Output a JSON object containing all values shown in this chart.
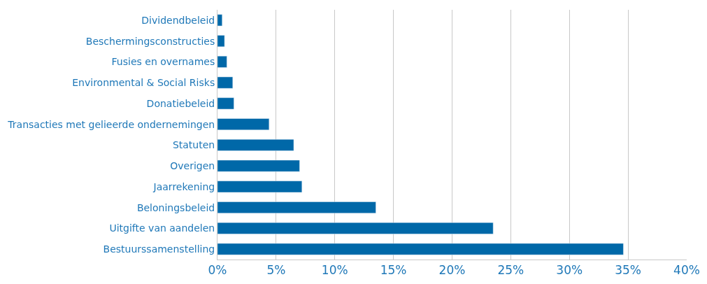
{
  "chart_data": {
    "type": "bar",
    "orientation": "horizontal",
    "categories": [
      "Dividendbeleid",
      "Beschermingsconstructies",
      "Fusies en overnames",
      "Environmental & Social Risks",
      "Donatiebeleid",
      "Transacties met gelieerde ondernemingen",
      "Statuten",
      "Overigen",
      "Jaarrekening",
      "Beloningsbeleid",
      "Uitgifte van aandelen",
      "Bestuurssamenstelling"
    ],
    "values": [
      0.4,
      0.6,
      0.8,
      1.3,
      1.4,
      4.4,
      6.5,
      7.0,
      7.2,
      13.5,
      23.5,
      34.6
    ],
    "color": "#0068a8",
    "xlim": [
      0,
      40
    ],
    "xticks": [
      {
        "value": 0,
        "label": "0%"
      },
      {
        "value": 5,
        "label": "5%"
      },
      {
        "value": 10,
        "label": "10%"
      },
      {
        "value": 15,
        "label": "15%"
      },
      {
        "value": 20,
        "label": "20%"
      },
      {
        "value": 25,
        "label": "25%"
      },
      {
        "value": 30,
        "label": "30%"
      },
      {
        "value": 35,
        "label": "35%"
      },
      {
        "value": 40,
        "label": "40%"
      }
    ],
    "grid": "x"
  }
}
